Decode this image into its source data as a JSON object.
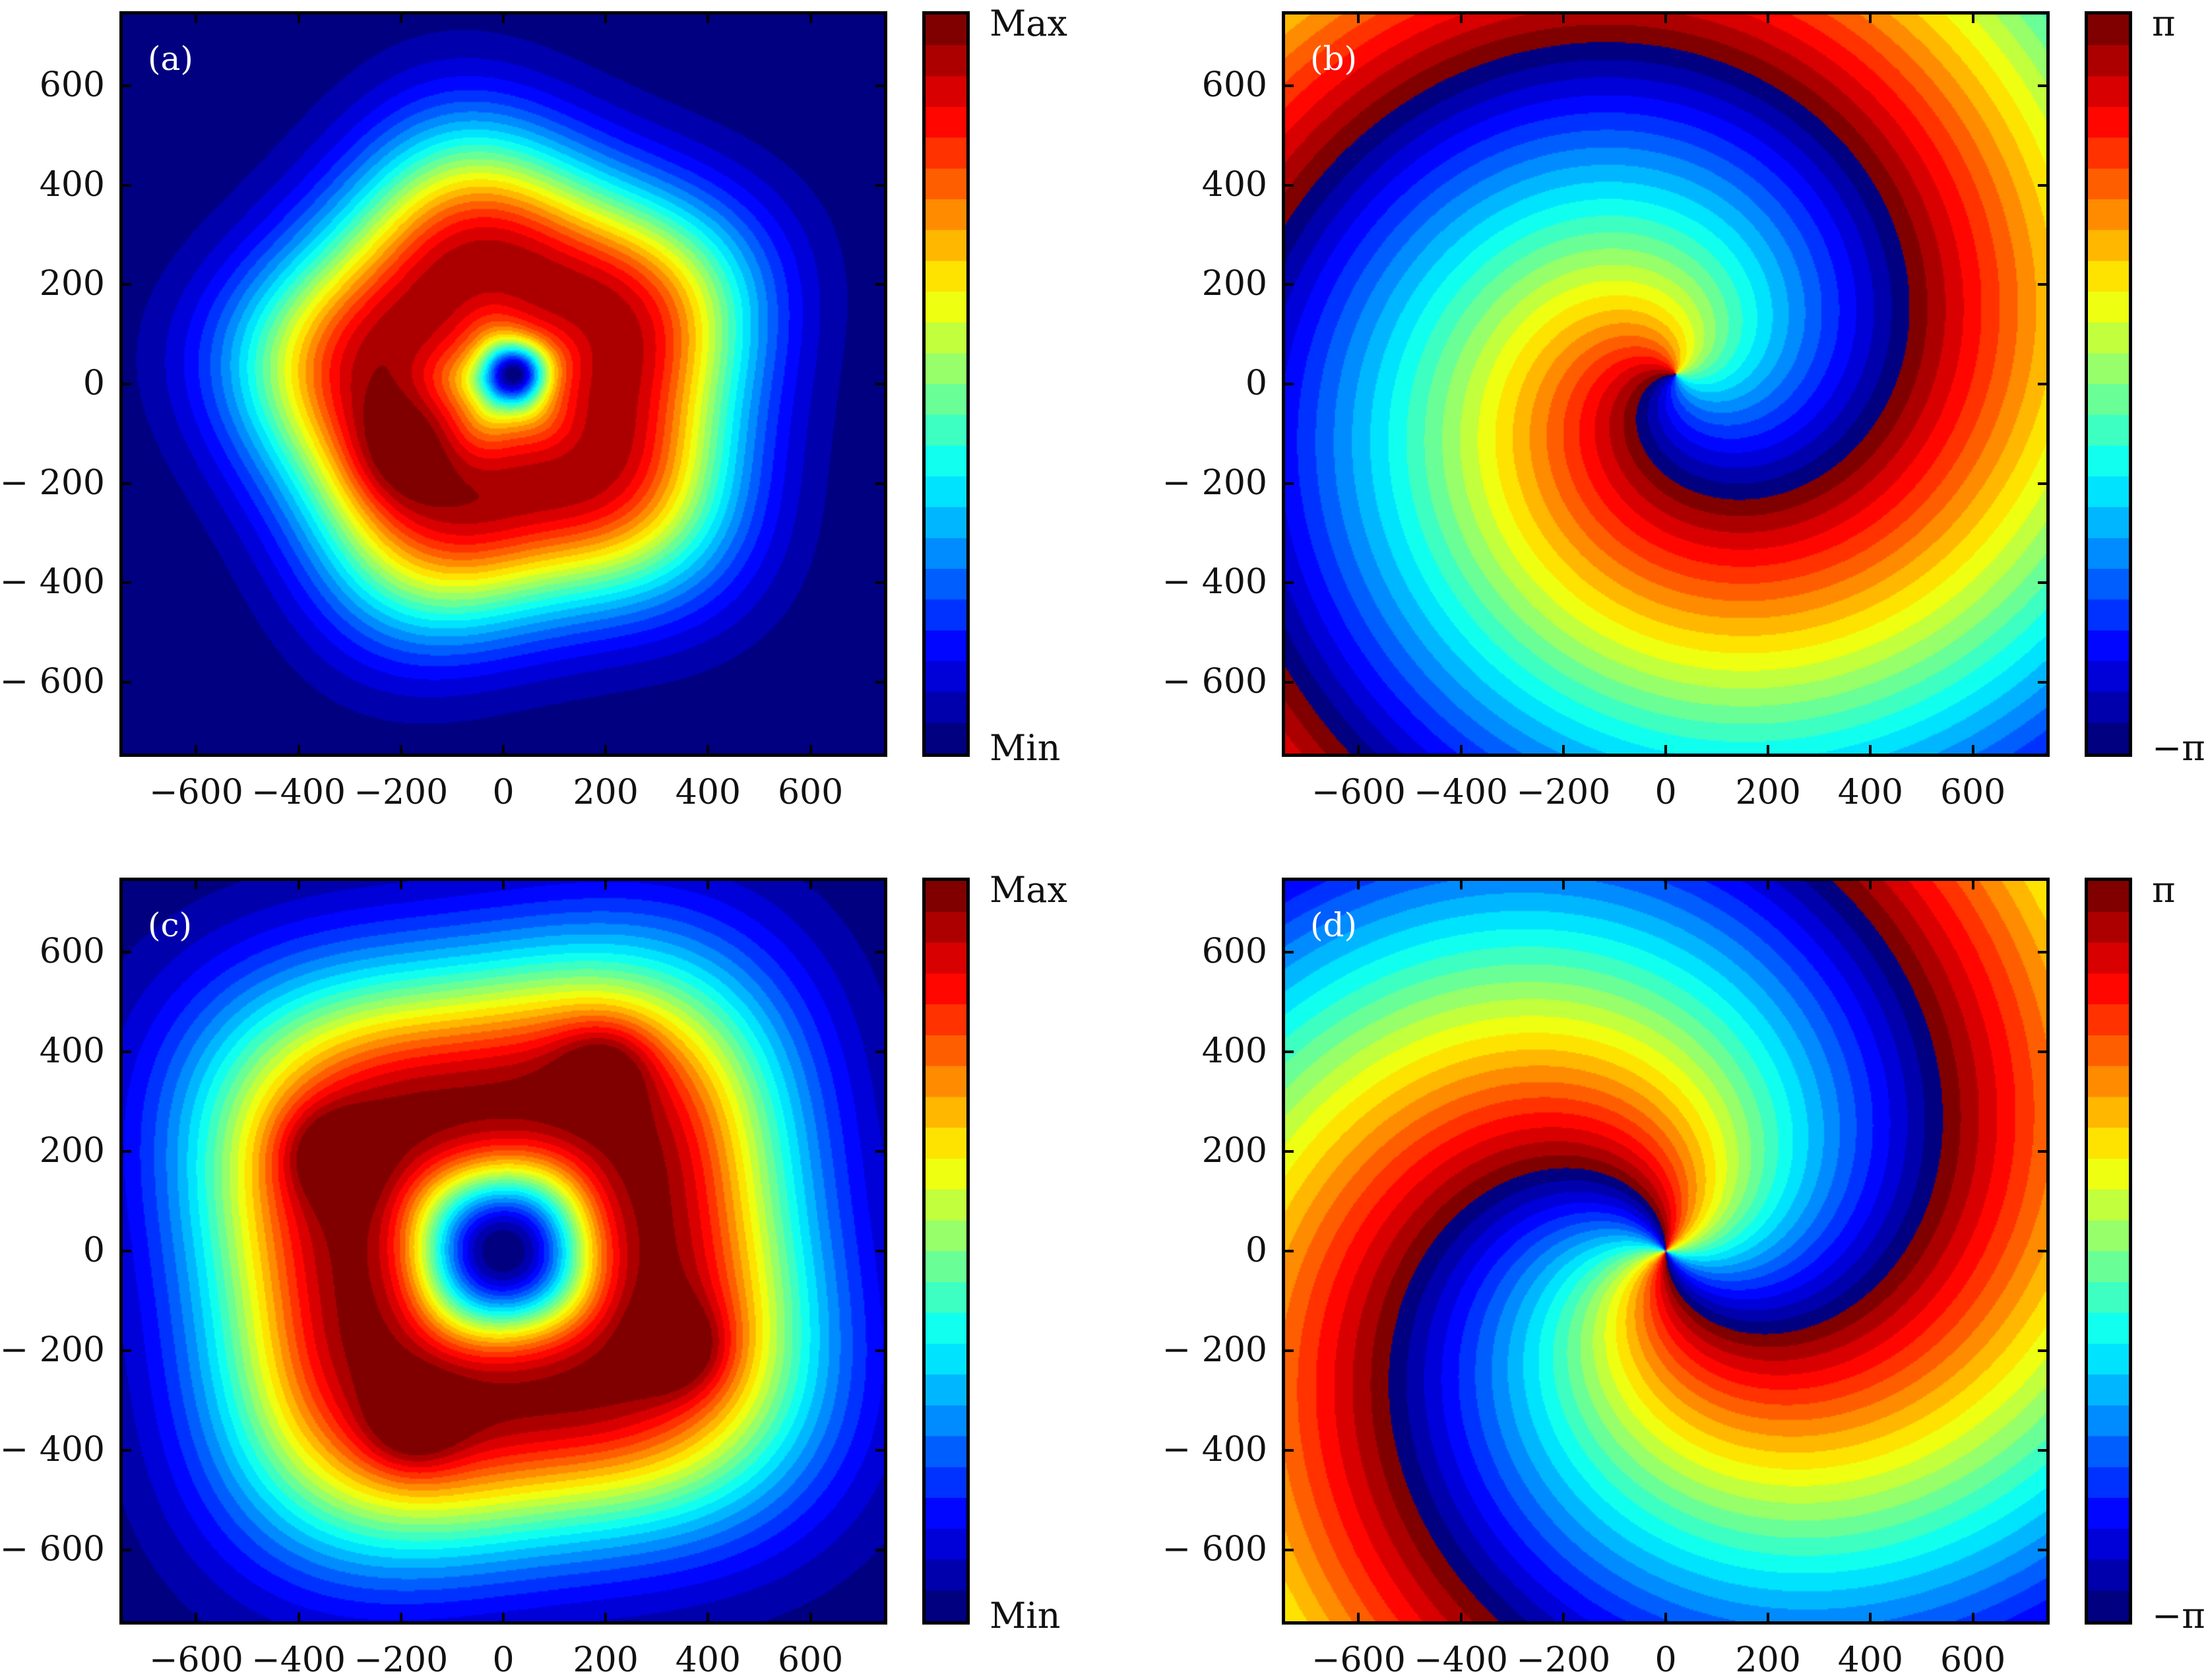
{
  "chart_data": [
    {
      "panel": "(a)",
      "type": "heatmap",
      "quantity": "amplitude",
      "xlim": [
        -750,
        750
      ],
      "ylim": [
        -750,
        750
      ],
      "xticks": [
        -600,
        -400,
        -200,
        0,
        200,
        400,
        600
      ],
      "yticks": [
        -600,
        -400,
        -200,
        0,
        200,
        400,
        600
      ],
      "colorbar": {
        "top": "Max",
        "bottom": "Min",
        "colormap": "jet",
        "levels": 24
      }
    },
    {
      "panel": "(b)",
      "type": "heatmap",
      "quantity": "phase",
      "xlim": [
        -750,
        750
      ],
      "ylim": [
        -750,
        750
      ],
      "xticks": [
        -600,
        -400,
        -200,
        0,
        200,
        400,
        600
      ],
      "yticks": [
        -600,
        -400,
        -200,
        0,
        200,
        400,
        600
      ],
      "colorbar": {
        "top": "π",
        "bottom": "−π",
        "colormap": "jet",
        "levels": 24
      },
      "topological_charge": 1
    },
    {
      "panel": "(c)",
      "type": "heatmap",
      "quantity": "amplitude",
      "xlim": [
        -750,
        750
      ],
      "ylim": [
        -750,
        750
      ],
      "xticks": [
        -600,
        -400,
        -200,
        0,
        200,
        400,
        600
      ],
      "yticks": [
        -600,
        -400,
        -200,
        0,
        200,
        400,
        600
      ],
      "colorbar": {
        "top": "Max",
        "bottom": "Min",
        "colormap": "jet",
        "levels": 24
      }
    },
    {
      "panel": "(d)",
      "type": "heatmap",
      "quantity": "phase",
      "xlim": [
        -750,
        750
      ],
      "ylim": [
        -750,
        750
      ],
      "xticks": [
        -600,
        -400,
        -200,
        0,
        200,
        400,
        600
      ],
      "yticks": [
        -600,
        -400,
        -200,
        0,
        200,
        400,
        600
      ],
      "colorbar": {
        "top": "π",
        "bottom": "−π",
        "colormap": "jet",
        "levels": 24
      },
      "topological_charge": 2
    }
  ]
}
